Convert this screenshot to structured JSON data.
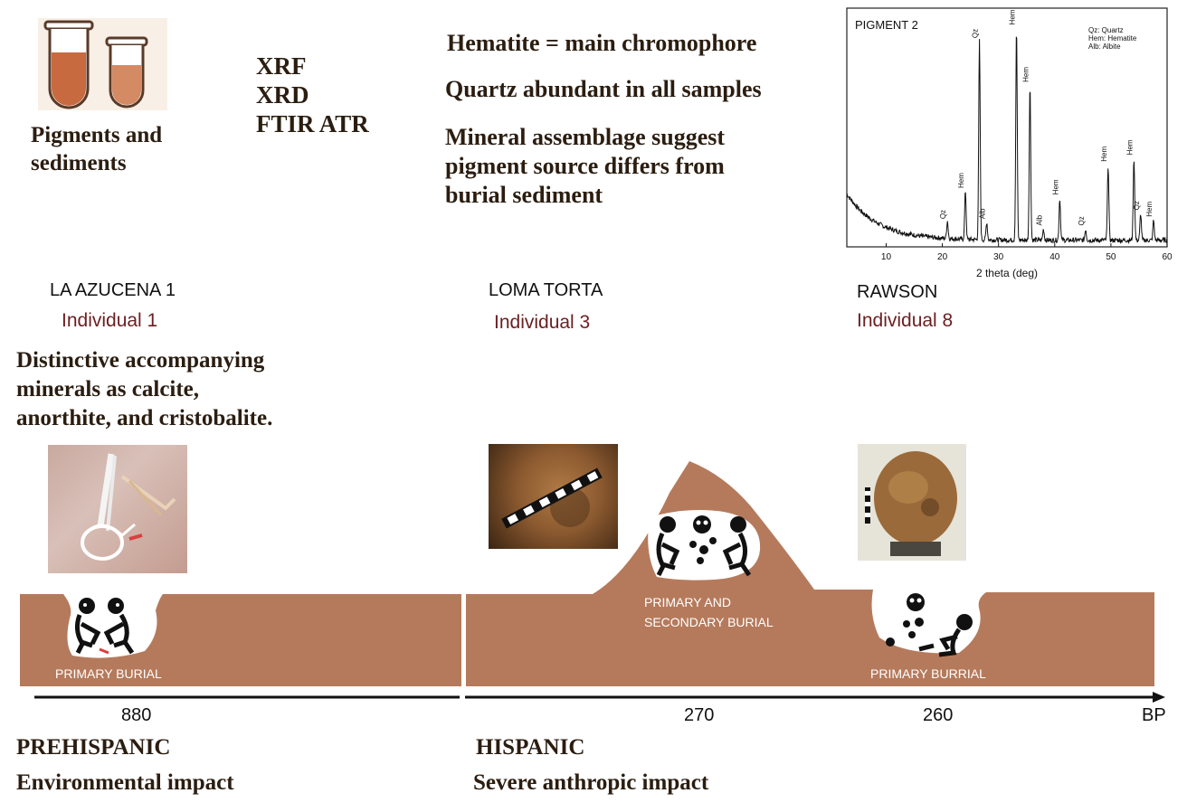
{
  "top": {
    "tubes_caption": "Pigments and\nsediments",
    "methods": [
      "XRF",
      "XRD",
      "FTIR ATR"
    ],
    "findings": [
      "Hematite = main chromophore",
      "Quartz abundant in all samples",
      "Mineral assemblage suggest\npigment source differs from\nburial sediment"
    ]
  },
  "chart_data": {
    "type": "line",
    "title": "PIGMENT 2",
    "xlabel": "2 theta (deg)",
    "ylabel": "",
    "xlim": [
      3,
      60
    ],
    "ylim": [
      0,
      100
    ],
    "xticks": [
      10,
      20,
      30,
      40,
      50,
      60
    ],
    "legend": [
      "Qz: Quartz",
      "Hem: Hematite",
      "Alb: Albite"
    ],
    "legend_placement": "top-right",
    "peaks": [
      {
        "x": 20.9,
        "y": 8,
        "label": "Qz"
      },
      {
        "x": 24.1,
        "y": 22,
        "label": "Hem"
      },
      {
        "x": 26.6,
        "y": 90,
        "label": "Qz"
      },
      {
        "x": 27.9,
        "y": 8,
        "label": "Alb"
      },
      {
        "x": 33.2,
        "y": 96,
        "label": "Hem"
      },
      {
        "x": 35.6,
        "y": 70,
        "label": "Hem"
      },
      {
        "x": 38.0,
        "y": 5,
        "label": "Alb"
      },
      {
        "x": 40.9,
        "y": 19,
        "label": "Hem"
      },
      {
        "x": 45.5,
        "y": 5,
        "label": "Qz"
      },
      {
        "x": 49.5,
        "y": 34,
        "label": "Hem"
      },
      {
        "x": 54.1,
        "y": 37,
        "label": "Hem"
      },
      {
        "x": 55.3,
        "y": 12,
        "label": "Qz"
      },
      {
        "x": 57.6,
        "y": 9,
        "label": "Hem"
      }
    ],
    "baseline": {
      "start": 24,
      "decay": 5.5,
      "floor": 3
    }
  },
  "sites": [
    {
      "name": "LA AZUCENA 1",
      "individual": "Individual 1"
    },
    {
      "name": "LOMA TORTA",
      "individual": "Individual 3"
    },
    {
      "name": "RAWSON",
      "individual": "Individual 8"
    }
  ],
  "azucena_note": "Distinctive accompanying\nminerals as calcite,\nanorthite, and cristobalite.",
  "burials": {
    "azucena": "PRIMARY BURIAL",
    "loma": "PRIMARY AND\nSECONDARY BURIAL",
    "rawson": "PRIMARY BURRIAL"
  },
  "timeline": {
    "dates": [
      "880",
      "270",
      "260"
    ],
    "unit": "BP"
  },
  "periods": [
    {
      "name": "PREHISPANIC",
      "impact": "Environmental impact"
    },
    {
      "name": "HISPANIC",
      "impact": "Severe anthropic impact"
    }
  ],
  "colors": {
    "sediment": "#b57a5c",
    "text_dark": "#2b1d10",
    "individual": "#6b1f22",
    "tube_fill": "#c76a40"
  }
}
